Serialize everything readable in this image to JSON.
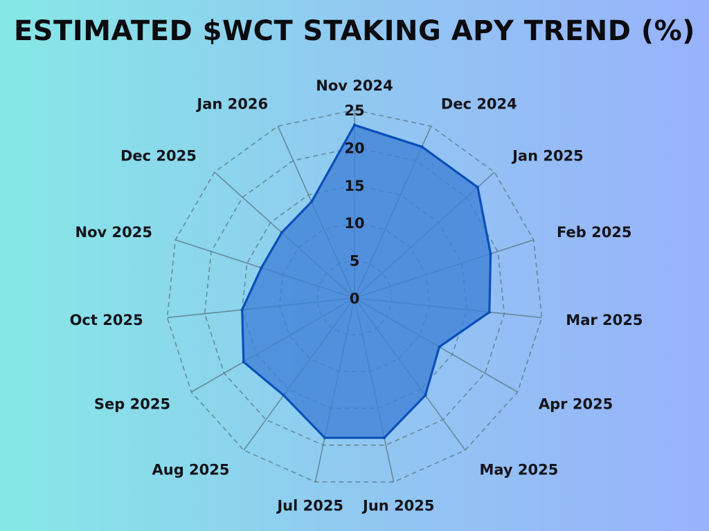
{
  "chart_data": {
    "type": "radar",
    "title": "ESTIMATED $WCT STAKING APY TREND (%)",
    "categories": [
      "Nov 2024",
      "Dec 2024",
      "Jan 2025",
      "Feb 2025",
      "Mar 2025",
      "Apr 2025",
      "May 2025",
      "Jun 2025",
      "Jul 2025",
      "Aug 2025",
      "Sep 2025",
      "Oct 2025",
      "Nov 2025",
      "Dec 2025",
      "Jan 2026"
    ],
    "series": [
      {
        "values": [
          23,
          22,
          22,
          19,
          18,
          13,
          16,
          19,
          19,
          16,
          17,
          15,
          13,
          13,
          14
        ]
      }
    ],
    "r_ticks": [
      0,
      5,
      10,
      15,
      20,
      25
    ],
    "rlim": [
      0,
      25
    ],
    "grid": "dashed",
    "colors": {
      "fill": "#3f80d6",
      "line": "#0a4fb8",
      "grid": "#5e7f8c"
    }
  }
}
